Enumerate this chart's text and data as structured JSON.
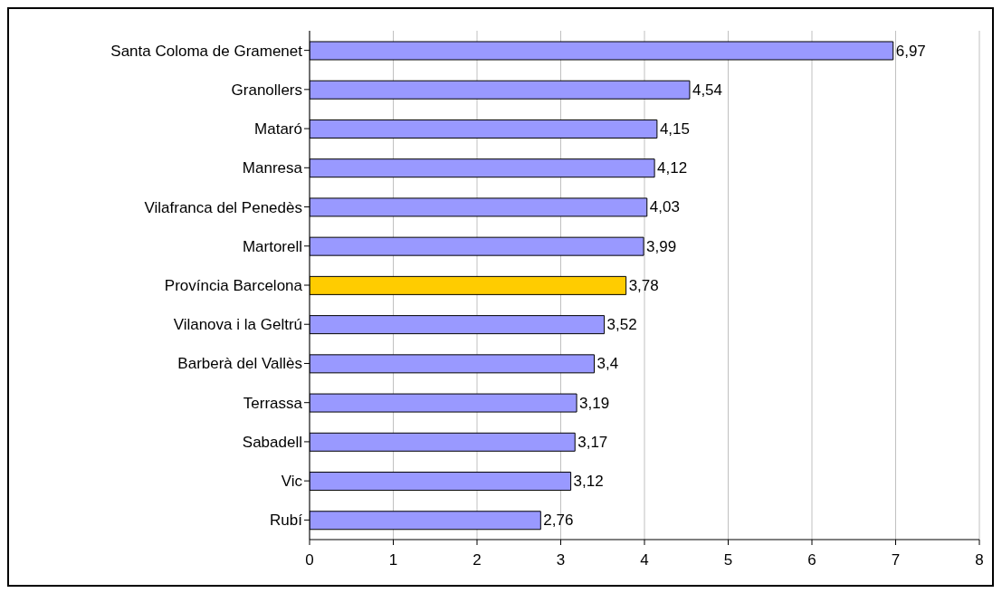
{
  "chart_data": {
    "type": "bar",
    "orientation": "horizontal",
    "categories": [
      "Santa Coloma de Gramenet",
      "Granollers",
      "Mataró",
      "Manresa",
      "Vilafranca del Penedès",
      "Martorell",
      "Província Barcelona",
      "Vilanova i la Geltrú",
      "Barberà del Vallès",
      "Terrassa",
      "Sabadell",
      "Vic",
      "Rubí"
    ],
    "values": [
      6.97,
      4.54,
      4.15,
      4.12,
      4.03,
      3.99,
      3.78,
      3.52,
      3.4,
      3.19,
      3.17,
      3.12,
      2.76
    ],
    "colors": [
      "#9999ff",
      "#9999ff",
      "#9999ff",
      "#9999ff",
      "#9999ff",
      "#9999ff",
      "#ffcc00",
      "#9999ff",
      "#9999ff",
      "#9999ff",
      "#9999ff",
      "#9999ff",
      "#9999ff"
    ],
    "value_labels": [
      "6,97",
      "4,54",
      "4,15",
      "4,12",
      "4,03",
      "3,99",
      "3,78",
      "3,52",
      "3,4",
      "3,19",
      "3,17",
      "3,12",
      "2,76"
    ],
    "xlim": [
      0,
      8
    ],
    "xticks": [
      0,
      1,
      2,
      3,
      4,
      5,
      6,
      7,
      8
    ],
    "grid": "x"
  }
}
